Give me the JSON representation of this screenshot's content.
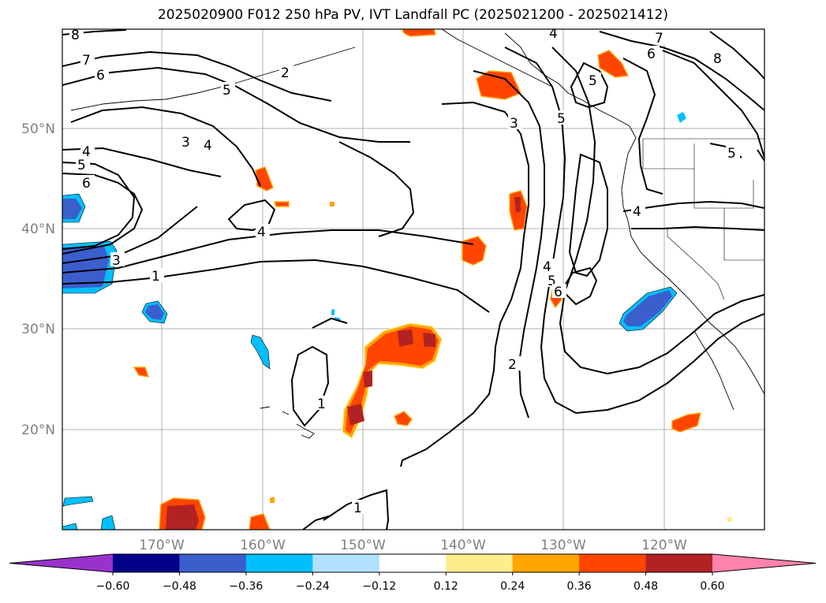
{
  "title": "2025020900 F012 250 hPa PV, IVT Landfall PC (2025021200 - 2025021412)",
  "map": {
    "lat_labels": [
      "50°N",
      "40°N",
      "30°N",
      "20°N"
    ],
    "lon_labels": [
      "170°W",
      "160°W",
      "150°W",
      "140°W",
      "130°W",
      "120°W"
    ],
    "pv_contour_labels": [
      "8",
      "7",
      "6",
      "5",
      "4",
      "3",
      "2",
      "1"
    ]
  },
  "colorbar": {
    "colors": [
      "#9932CC",
      "#00008B",
      "#3A5FCD",
      "#00BFFF",
      "#B0E2FF",
      "#FFFFFF",
      "#FFEC8B",
      "#FFA500",
      "#FF4500",
      "#B22222",
      "#FF82AB"
    ],
    "ticks": [
      "−0.60",
      "−0.48",
      "−0.36",
      "−0.24",
      "−0.12",
      "0.12",
      "0.24",
      "0.36",
      "0.48",
      "0.60"
    ]
  }
}
